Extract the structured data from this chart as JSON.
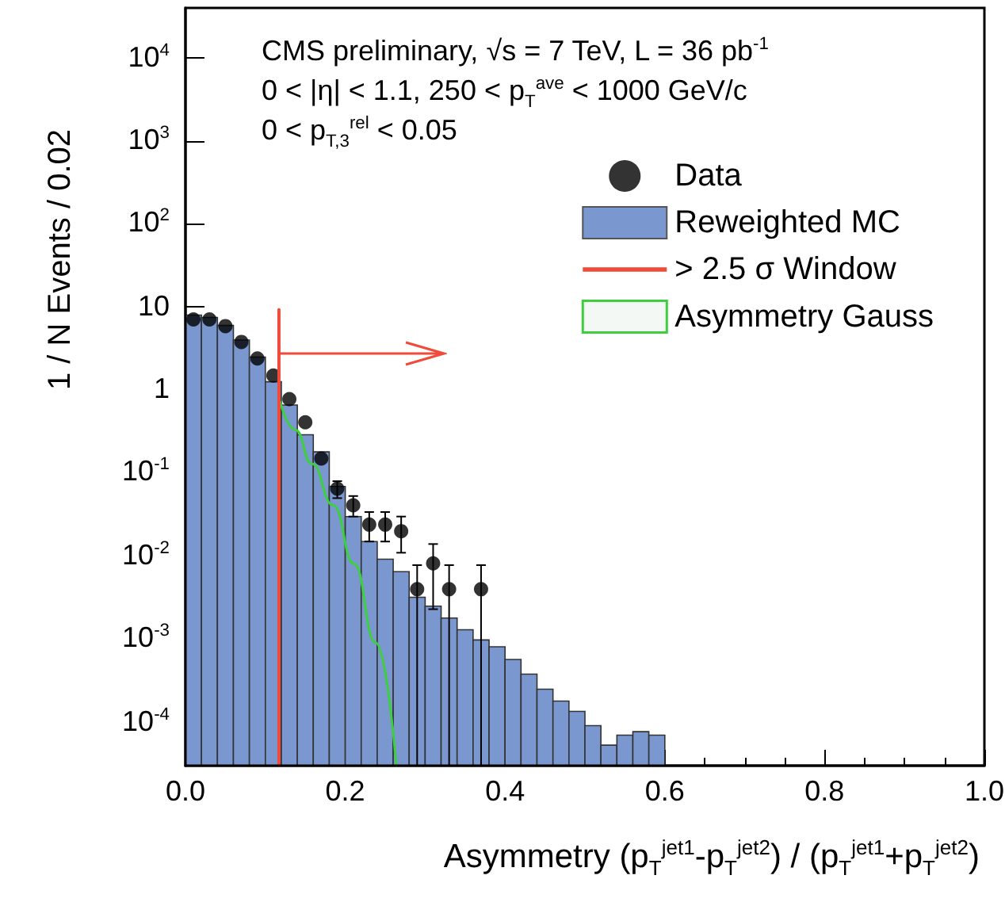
{
  "chart_data": {
    "type": "histogram",
    "xlabel": "Asymmetry  (p$_{T}$$^{jet1}$-p$_{T}$$^{jet2}$) / (p$_{T}$$^{jet1}$+p$_{T}$$^{jet2}$)",
    "ylabel": "1 / N  Events / 0.02",
    "annotations": [
      "CMS preliminary, √s = 7 TeV,  L = 36 pb$^{-1}$",
      "0 < |η| < 1.1,  250 < p$_{T}$$^{ave}$ < 1000 GeV/c",
      "0 < p$_{T,3}$$^{rel}$ < 0.05"
    ],
    "xlim": [
      0,
      1
    ],
    "xticks": [
      {
        "value": 0,
        "label": "0.0"
      },
      {
        "value": 0.2,
        "label": "0.2"
      },
      {
        "value": 0.4,
        "label": "0.4"
      },
      {
        "value": 0.6,
        "label": "0.6"
      },
      {
        "value": 0.8,
        "label": "0.8"
      },
      {
        "value": 1,
        "label": "1.0"
      }
    ],
    "ylim": [
      3e-05,
      40000
    ],
    "yticks": [
      {
        "value": 0.0001,
        "label": "10$^{-4}$"
      },
      {
        "value": 0.001,
        "label": "10$^{-3}$"
      },
      {
        "value": 0.01,
        "label": "10$^{-2}$"
      },
      {
        "value": 0.1,
        "label": "10$^{-1}$"
      },
      1,
      10,
      {
        "value": 100,
        "label": "10$^{2}$"
      },
      {
        "value": 1000,
        "label": "10$^{3}$"
      },
      {
        "value": 10000,
        "label": "10$^{4}$"
      }
    ],
    "log": "y",
    "grid": false,
    "legend": "top right",
    "series": [
      {
        "name": "Data",
        "type": "scatter",
        "marker": "circle",
        "color": "#000000",
        "x": [
          0.01,
          0.03,
          0.05,
          0.07,
          0.09,
          0.11,
          0.13,
          0.15,
          0.17,
          0.19,
          0.21,
          0.23,
          0.25,
          0.27,
          0.29,
          0.31,
          0.33,
          0.37
        ],
        "values": [
          7.1,
          7.1,
          5.9,
          3.8,
          2.4,
          1.5,
          0.78,
          0.41,
          0.15,
          0.065,
          0.041,
          0.024,
          0.024,
          0.02,
          0.004,
          0.0082,
          0.004,
          0.004
        ],
        "errors": [
          null,
          null,
          null,
          null,
          null,
          null,
          null,
          null,
          null,
          [
            0.05,
            0.08
          ],
          [
            0.03,
            0.053
          ],
          [
            0.015,
            0.034
          ],
          [
            0.015,
            0.034
          ],
          [
            0.011,
            0.03
          ],
          [
            3e-05,
            0.0078
          ],
          [
            0.0023,
            0.014
          ],
          [
            3e-05,
            0.0078
          ],
          [
            3e-05,
            0.0078
          ]
        ]
      },
      {
        "name": "Reweighted MC",
        "type": "histogram",
        "color": "#7b97cf",
        "bins": [
          0,
          0.02,
          0.04,
          0.06,
          0.08,
          0.1,
          0.12,
          0.14,
          0.16,
          0.18,
          0.2,
          0.22,
          0.24,
          0.26,
          0.28,
          0.3,
          0.32,
          0.34,
          0.36,
          0.38,
          0.4,
          0.42,
          0.44,
          0.46,
          0.48,
          0.5,
          0.52,
          0.54,
          0.56,
          0.58,
          0.6
        ],
        "values": [
          8,
          7.5,
          6,
          4,
          2.5,
          1.26,
          0.66,
          0.29,
          0.18,
          0.069,
          0.03,
          0.015,
          0.0092,
          0.0065,
          0.0032,
          0.0025,
          0.0018,
          0.0013,
          0.00098,
          0.00081,
          0.00057,
          0.00038,
          0.00025,
          0.00018,
          0.000135,
          9.1e-05,
          5.3e-05,
          7e-05,
          7.7e-05,
          7e-05
        ]
      },
      {
        "name": "> 2.5 σ Window",
        "type": "line",
        "color": "#f04a3a",
        "x": [
          0.117,
          0.117
        ],
        "values": [
          3e-05,
          9.3
        ]
      },
      {
        "name": "Asymmetry Gauss",
        "type": "line",
        "color": "#3ecf3e",
        "x": [
          0.118,
          0.138,
          0.158,
          0.185,
          0.211,
          0.238,
          0.264
        ],
        "values": [
          0.74,
          0.33,
          0.13,
          0.041,
          0.0081,
          0.00091,
          3e-05
        ]
      }
    ]
  }
}
